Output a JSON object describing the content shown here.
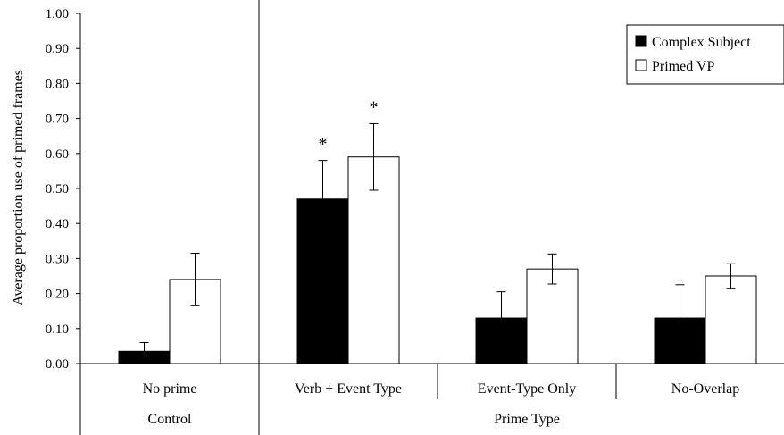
{
  "chart_data": {
    "type": "bar",
    "title": "",
    "ylabel": "Average proportion use of primed frames",
    "ylim": [
      0,
      1
    ],
    "yticks": [
      "0.00",
      "0.10",
      "0.20",
      "0.30",
      "0.40",
      "0.50",
      "0.60",
      "0.70",
      "0.80",
      "0.90",
      "1.00"
    ],
    "categories": [
      "No prime",
      "Verb + Event Type",
      "Event-Type Only",
      "No-Overlap"
    ],
    "groups": [
      {
        "label": "Control",
        "categories": [
          0
        ]
      },
      {
        "label": "Prime Type",
        "categories": [
          1,
          2,
          3
        ]
      }
    ],
    "series": [
      {
        "name": "Complex Subject",
        "color": "#000000",
        "values": [
          0.035,
          0.47,
          0.13,
          0.13
        ],
        "error": [
          0.025,
          0.11,
          0.075,
          0.095
        ]
      },
      {
        "name": "Primed VP",
        "color": "#ffffff",
        "values": [
          0.24,
          0.59,
          0.27,
          0.25
        ],
        "error": [
          0.075,
          0.095,
          0.043,
          0.035
        ]
      }
    ],
    "significance": [
      {
        "category": 1,
        "series": 0,
        "label": "*"
      },
      {
        "category": 1,
        "series": 1,
        "label": "*"
      }
    ],
    "legend_position": "top-right",
    "grid": false
  }
}
